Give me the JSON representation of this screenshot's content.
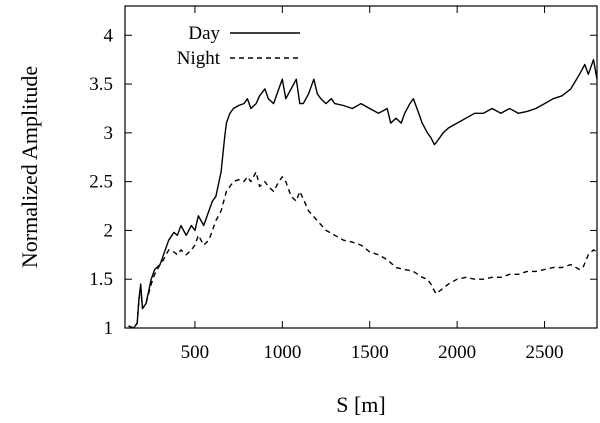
{
  "chart_data": {
    "type": "line",
    "title": "",
    "xlabel": "S [m]",
    "ylabel": "Normalized Amplitude",
    "xlim": [
      100,
      2800
    ],
    "ylim": [
      1,
      4.3
    ],
    "xticks": [
      500,
      1000,
      1500,
      2000,
      2500
    ],
    "yticks": [
      1,
      1.5,
      2,
      2.5,
      3,
      3.5,
      4
    ],
    "xtick_labels": [
      "500",
      "1000",
      "1500",
      "2000",
      "2500"
    ],
    "ytick_labels": [
      "1",
      "1.5",
      "2",
      "2.5",
      "3",
      "3.5",
      "4"
    ],
    "grid": false,
    "legend_position": "top-left",
    "series": [
      {
        "name": "Day",
        "style": "solid",
        "color": "#000000",
        "x": [
          120,
          150,
          170,
          180,
          190,
          200,
          220,
          250,
          270,
          300,
          320,
          350,
          380,
          400,
          420,
          450,
          480,
          500,
          520,
          550,
          580,
          600,
          620,
          650,
          670,
          680,
          690,
          700,
          720,
          750,
          780,
          800,
          820,
          850,
          870,
          900,
          920,
          950,
          980,
          1000,
          1020,
          1050,
          1080,
          1100,
          1120,
          1150,
          1180,
          1200,
          1220,
          1250,
          1280,
          1300,
          1350,
          1400,
          1450,
          1500,
          1550,
          1600,
          1620,
          1650,
          1680,
          1700,
          1730,
          1750,
          1780,
          1800,
          1830,
          1850,
          1870,
          1880,
          1900,
          1920,
          1950,
          1980,
          2000,
          2050,
          2100,
          2150,
          2200,
          2250,
          2300,
          2350,
          2400,
          2450,
          2500,
          2550,
          2600,
          2650,
          2700,
          2730,
          2750,
          2780,
          2800
        ],
        "y": [
          1.02,
          1.0,
          1.05,
          1.3,
          1.45,
          1.2,
          1.25,
          1.5,
          1.6,
          1.65,
          1.75,
          1.9,
          1.98,
          1.95,
          2.05,
          1.95,
          2.05,
          2.0,
          2.15,
          2.05,
          2.2,
          2.3,
          2.35,
          2.6,
          2.95,
          3.1,
          3.15,
          3.2,
          3.25,
          3.28,
          3.3,
          3.35,
          3.25,
          3.3,
          3.38,
          3.45,
          3.35,
          3.3,
          3.45,
          3.55,
          3.35,
          3.45,
          3.55,
          3.3,
          3.3,
          3.4,
          3.55,
          3.4,
          3.35,
          3.3,
          3.35,
          3.3,
          3.28,
          3.25,
          3.3,
          3.25,
          3.2,
          3.25,
          3.1,
          3.15,
          3.1,
          3.2,
          3.3,
          3.35,
          3.2,
          3.1,
          3.0,
          2.95,
          2.88,
          2.9,
          2.95,
          3.0,
          3.05,
          3.08,
          3.1,
          3.15,
          3.2,
          3.2,
          3.25,
          3.2,
          3.25,
          3.2,
          3.22,
          3.25,
          3.3,
          3.35,
          3.38,
          3.45,
          3.6,
          3.7,
          3.6,
          3.75,
          3.55
        ]
      },
      {
        "name": "Night",
        "style": "dashed",
        "color": "#000000",
        "x": [
          120,
          150,
          170,
          180,
          190,
          200,
          220,
          250,
          270,
          300,
          320,
          350,
          380,
          400,
          420,
          450,
          480,
          500,
          520,
          550,
          580,
          600,
          620,
          650,
          680,
          700,
          720,
          750,
          780,
          800,
          820,
          850,
          870,
          900,
          920,
          950,
          980,
          1000,
          1020,
          1050,
          1080,
          1100,
          1150,
          1200,
          1250,
          1300,
          1350,
          1400,
          1450,
          1500,
          1550,
          1600,
          1650,
          1700,
          1750,
          1800,
          1830,
          1850,
          1870,
          1880,
          1900,
          1950,
          2000,
          2050,
          2100,
          2150,
          2200,
          2250,
          2300,
          2350,
          2400,
          2450,
          2500,
          2550,
          2600,
          2650,
          2700,
          2720,
          2750,
          2780,
          2800
        ],
        "y": [
          1.02,
          1.0,
          1.05,
          1.3,
          1.4,
          1.2,
          1.25,
          1.45,
          1.55,
          1.65,
          1.7,
          1.8,
          1.78,
          1.75,
          1.8,
          1.75,
          1.8,
          1.85,
          1.95,
          1.85,
          1.9,
          2.0,
          2.1,
          2.2,
          2.4,
          2.45,
          2.5,
          2.52,
          2.5,
          2.55,
          2.5,
          2.6,
          2.45,
          2.5,
          2.45,
          2.4,
          2.5,
          2.55,
          2.5,
          2.35,
          2.3,
          2.4,
          2.2,
          2.1,
          2.0,
          1.95,
          1.9,
          1.88,
          1.85,
          1.78,
          1.75,
          1.7,
          1.62,
          1.6,
          1.58,
          1.52,
          1.5,
          1.45,
          1.38,
          1.35,
          1.38,
          1.45,
          1.5,
          1.52,
          1.5,
          1.5,
          1.52,
          1.52,
          1.55,
          1.55,
          1.58,
          1.58,
          1.6,
          1.62,
          1.62,
          1.65,
          1.6,
          1.62,
          1.75,
          1.8,
          1.78
        ]
      }
    ]
  }
}
